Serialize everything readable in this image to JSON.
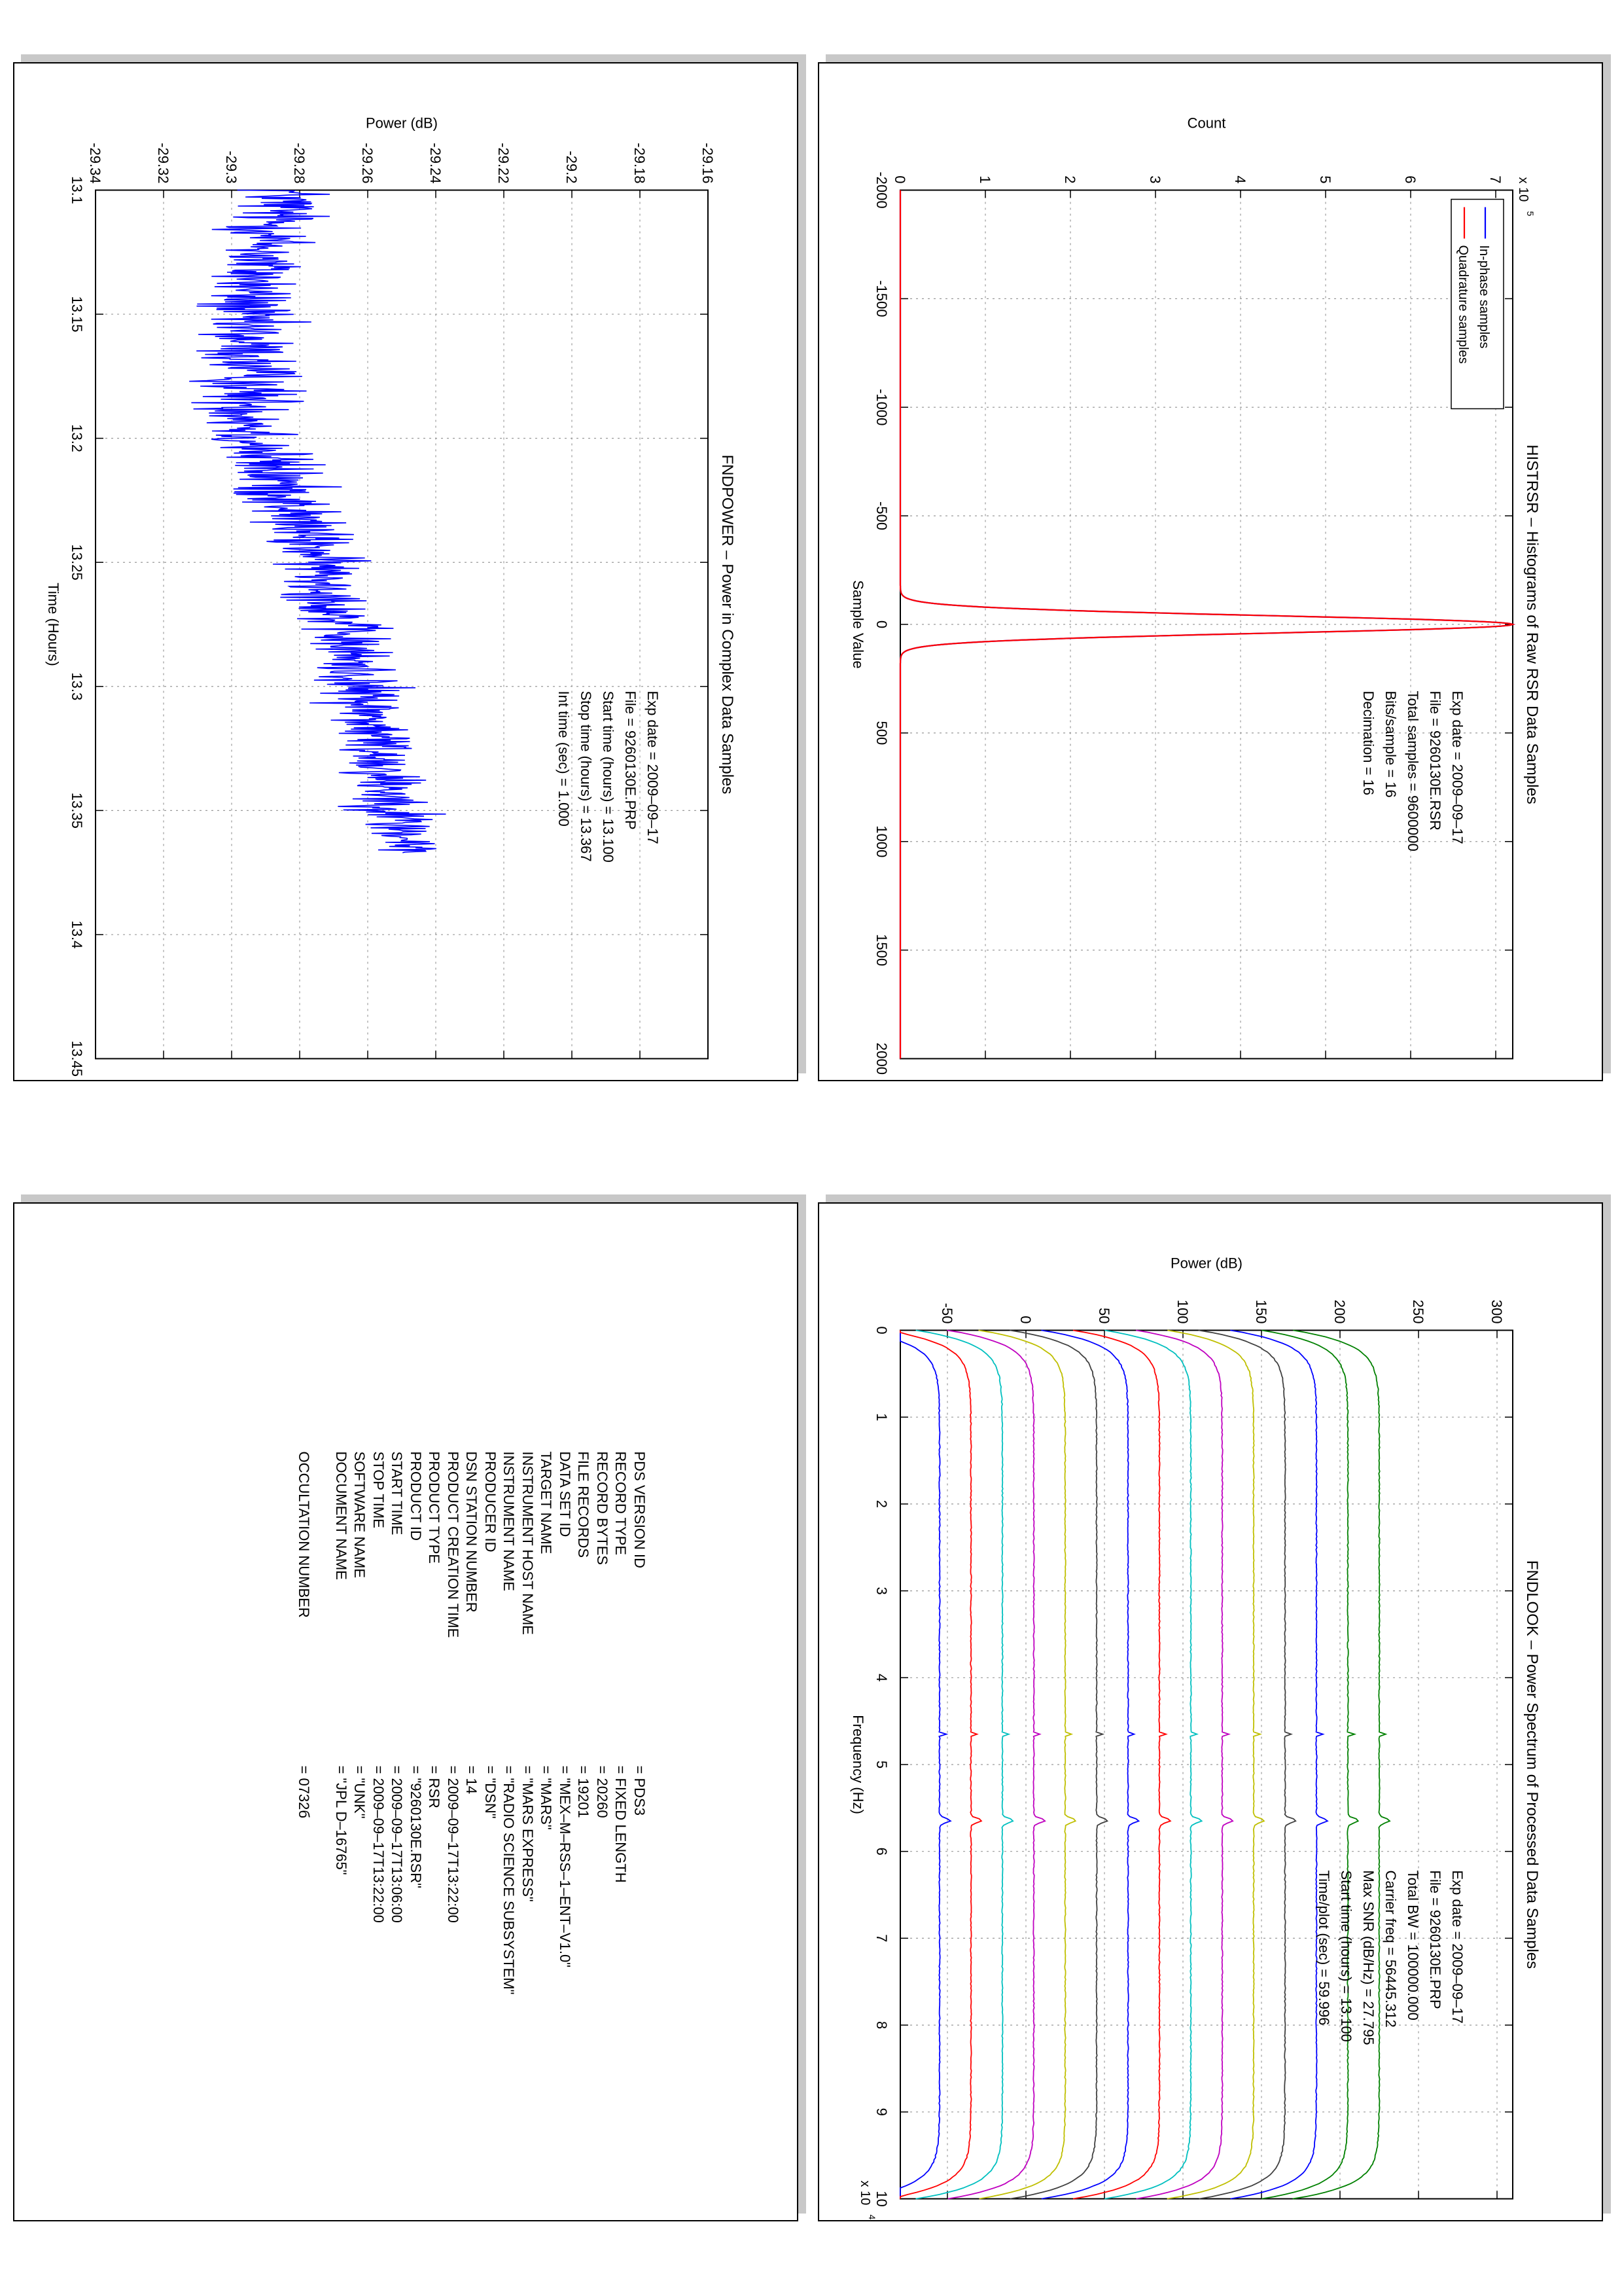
{
  "histogram": {
    "title": "HISTRSR – Histograms of Raw RSR Data Samples",
    "xlabel": "Sample Value",
    "ylabel": "Count",
    "exponent": "x 10",
    "exponent_power": "5",
    "legend": [
      "In-phase samples",
      "Quadrature samples"
    ],
    "info": [
      "Exp date = 2009–09–17",
      "File = 9260130E.RSR",
      "Total samples =   9600000",
      "Bits/sample   =        16",
      "Decimation    =        16"
    ]
  },
  "power": {
    "title": "FNDPOWER – Power in Complex Data Samples",
    "xlabel": "Time (Hours)",
    "ylabel": "Power (dB)",
    "info": [
      "Exp date = 2009–09–17",
      "File = 9260130E.PRP",
      "Start time (hours) = 13.100",
      "Stop time (hours)  =  13.367",
      "Int time (sec) =       1.000"
    ]
  },
  "spectrum": {
    "title": "FNDLOOK – Power Spectrum of Processed Data Samples",
    "xlabel": "Frequency (Hz)",
    "ylabel": "Power (dB)",
    "exponent": "x 10",
    "exponent_power": "4",
    "info": [
      "Exp date = 2009–09–17",
      "File = 9260130E.PRP",
      "Total BW =   100000.000",
      "Carrier freq =   56445.312",
      "Max SNR (dB/Hz) =     27.795",
      "Start time (hours) =   13.100",
      "Time/plot (sec) =     59.996"
    ]
  },
  "label": {
    "rows": [
      {
        "key": "PDS VERSION ID",
        "value": "= PDS3"
      },
      {
        "key": "RECORD TYPE",
        "value": "= FIXED LENGTH"
      },
      {
        "key": "RECORD BYTES",
        "value": "= 20260"
      },
      {
        "key": "FILE RECORDS",
        "value": "= 19201"
      },
      {
        "key": "DATA SET ID",
        "value": "= \"MEX–M–RSS–1–ENT–V1.0\""
      },
      {
        "key": "TARGET NAME",
        "value": "= \"MARS\""
      },
      {
        "key": "INSTRUMENT HOST NAME",
        "value": "= \"MARS EXPRESS\""
      },
      {
        "key": "INSTRUMENT NAME",
        "value": "= \"RADIO SCIENCE SUBSYSTEM\""
      },
      {
        "key": "PRODUCER ID",
        "value": "= \"DSN\""
      },
      {
        "key": "DSN STATION NUMBER",
        "value": "= 14"
      },
      {
        "key": "PRODUCT CREATION TIME",
        "value": "= 2009–09–17T13:22:00"
      },
      {
        "key": "PRODUCT TYPE",
        "value": "= RSR"
      },
      {
        "key": "PRODUCT ID",
        "value": "= \"9260130E.RSR\""
      },
      {
        "key": "START TIME",
        "value": "= 2009–09–17T13:06:00"
      },
      {
        "key": "STOP TIME",
        "value": "= 2009–09–17T13:22:00"
      },
      {
        "key": "SOFTWARE NAME",
        "value": "= \"UNK\""
      },
      {
        "key": "DOCUMENT NAME",
        "value": "= \"JPL D–16765\""
      },
      {
        "key": "",
        "value": ""
      },
      {
        "key": "OCCULTATION NUMBER",
        "value": "= 0732б"
      }
    ]
  },
  "chart_data": [
    {
      "type": "line",
      "title": "HISTRSR – Histograms of Raw RSR Data Samples",
      "xlabel": "Sample Value",
      "ylabel": "Count",
      "xlim": [
        -2000,
        2000
      ],
      "ylim": [
        0,
        720000
      ],
      "xticks": [
        "-2000",
        "-1500",
        "-1000",
        "-500",
        "0",
        "500",
        "1000",
        "1500",
        "2000"
      ],
      "yticks": [
        "0",
        "1",
        "2",
        "3",
        "4",
        "5",
        "6",
        "7"
      ],
      "y_multiplier": "x 10^5",
      "grid": true,
      "legend_position": "top-left",
      "series": [
        {
          "name": "In-phase samples",
          "color": "#0000ff",
          "distribution": "gaussian",
          "peak_x": 0,
          "peak_count": 720000,
          "std": 40
        },
        {
          "name": "Quadrature samples",
          "color": "#ff0000",
          "distribution": "gaussian",
          "peak_x": 0,
          "peak_count": 720000,
          "std": 40
        }
      ]
    },
    {
      "type": "line",
      "title": "FNDPOWER – Power in Complex Data Samples",
      "xlabel": "Time (Hours)",
      "ylabel": "Power (dB)",
      "xlim": [
        13.1,
        13.45
      ],
      "ylim": [
        -29.34,
        -29.16
      ],
      "xticks": [
        "13.1",
        "13.15",
        "13.2",
        "13.25",
        "13.3",
        "13.35",
        "13.4",
        "13.45"
      ],
      "yticks": [
        "-29.34",
        "-29.32",
        "-29.3",
        "-29.28",
        "-29.26",
        "-29.24",
        "-29.22",
        "-29.2",
        "-29.18",
        "-29.16"
      ],
      "grid": true,
      "series": [
        {
          "name": "",
          "color": "#0000ff",
          "x_start": 13.1,
          "x_end": 13.367,
          "trend": [
            {
              "x": 13.1,
              "y": -29.284,
              "spread": 0.012
            },
            {
              "x": 13.15,
              "y": -29.297,
              "spread": 0.012
            },
            {
              "x": 13.2,
              "y": -29.293,
              "spread": 0.013
            },
            {
              "x": 13.25,
              "y": -29.274,
              "spread": 0.01
            },
            {
              "x": 13.3,
              "y": -29.262,
              "spread": 0.01
            },
            {
              "x": 13.367,
              "y": -29.248,
              "spread": 0.01
            }
          ]
        }
      ]
    },
    {
      "type": "line",
      "title": "FNDLOOK – Power Spectrum of Processed Data Samples",
      "xlabel": "Frequency (Hz)",
      "ylabel": "Power (dB)",
      "xlim": [
        0,
        100000
      ],
      "ylim": [
        -80,
        310
      ],
      "xticks": [
        "0",
        "1",
        "2",
        "3",
        "4",
        "5",
        "6",
        "7",
        "8",
        "9",
        "10"
      ],
      "yticks": [
        "-50",
        "0",
        "50",
        "100",
        "150",
        "200",
        "250",
        "300"
      ],
      "x_multiplier": "x 10^4",
      "grid": true,
      "series_offsets_db": [
        -55,
        -35,
        -15,
        5,
        25,
        45,
        65,
        85,
        105,
        125,
        145,
        165,
        185,
        205,
        225
      ],
      "series_colors": [
        "#0000ff",
        "#ff0000",
        "#00bfbf",
        "#bf00bf",
        "#bfbf00",
        "#404040",
        "#0000ff",
        "#ff0000",
        "#00bfbf",
        "#bf00bf",
        "#bfbf00",
        "#404040",
        "#0000ff",
        "#008000",
        "#008000"
      ],
      "carrier_freq_hz": 56445.312,
      "spike_freq_hz": 46500
    }
  ]
}
